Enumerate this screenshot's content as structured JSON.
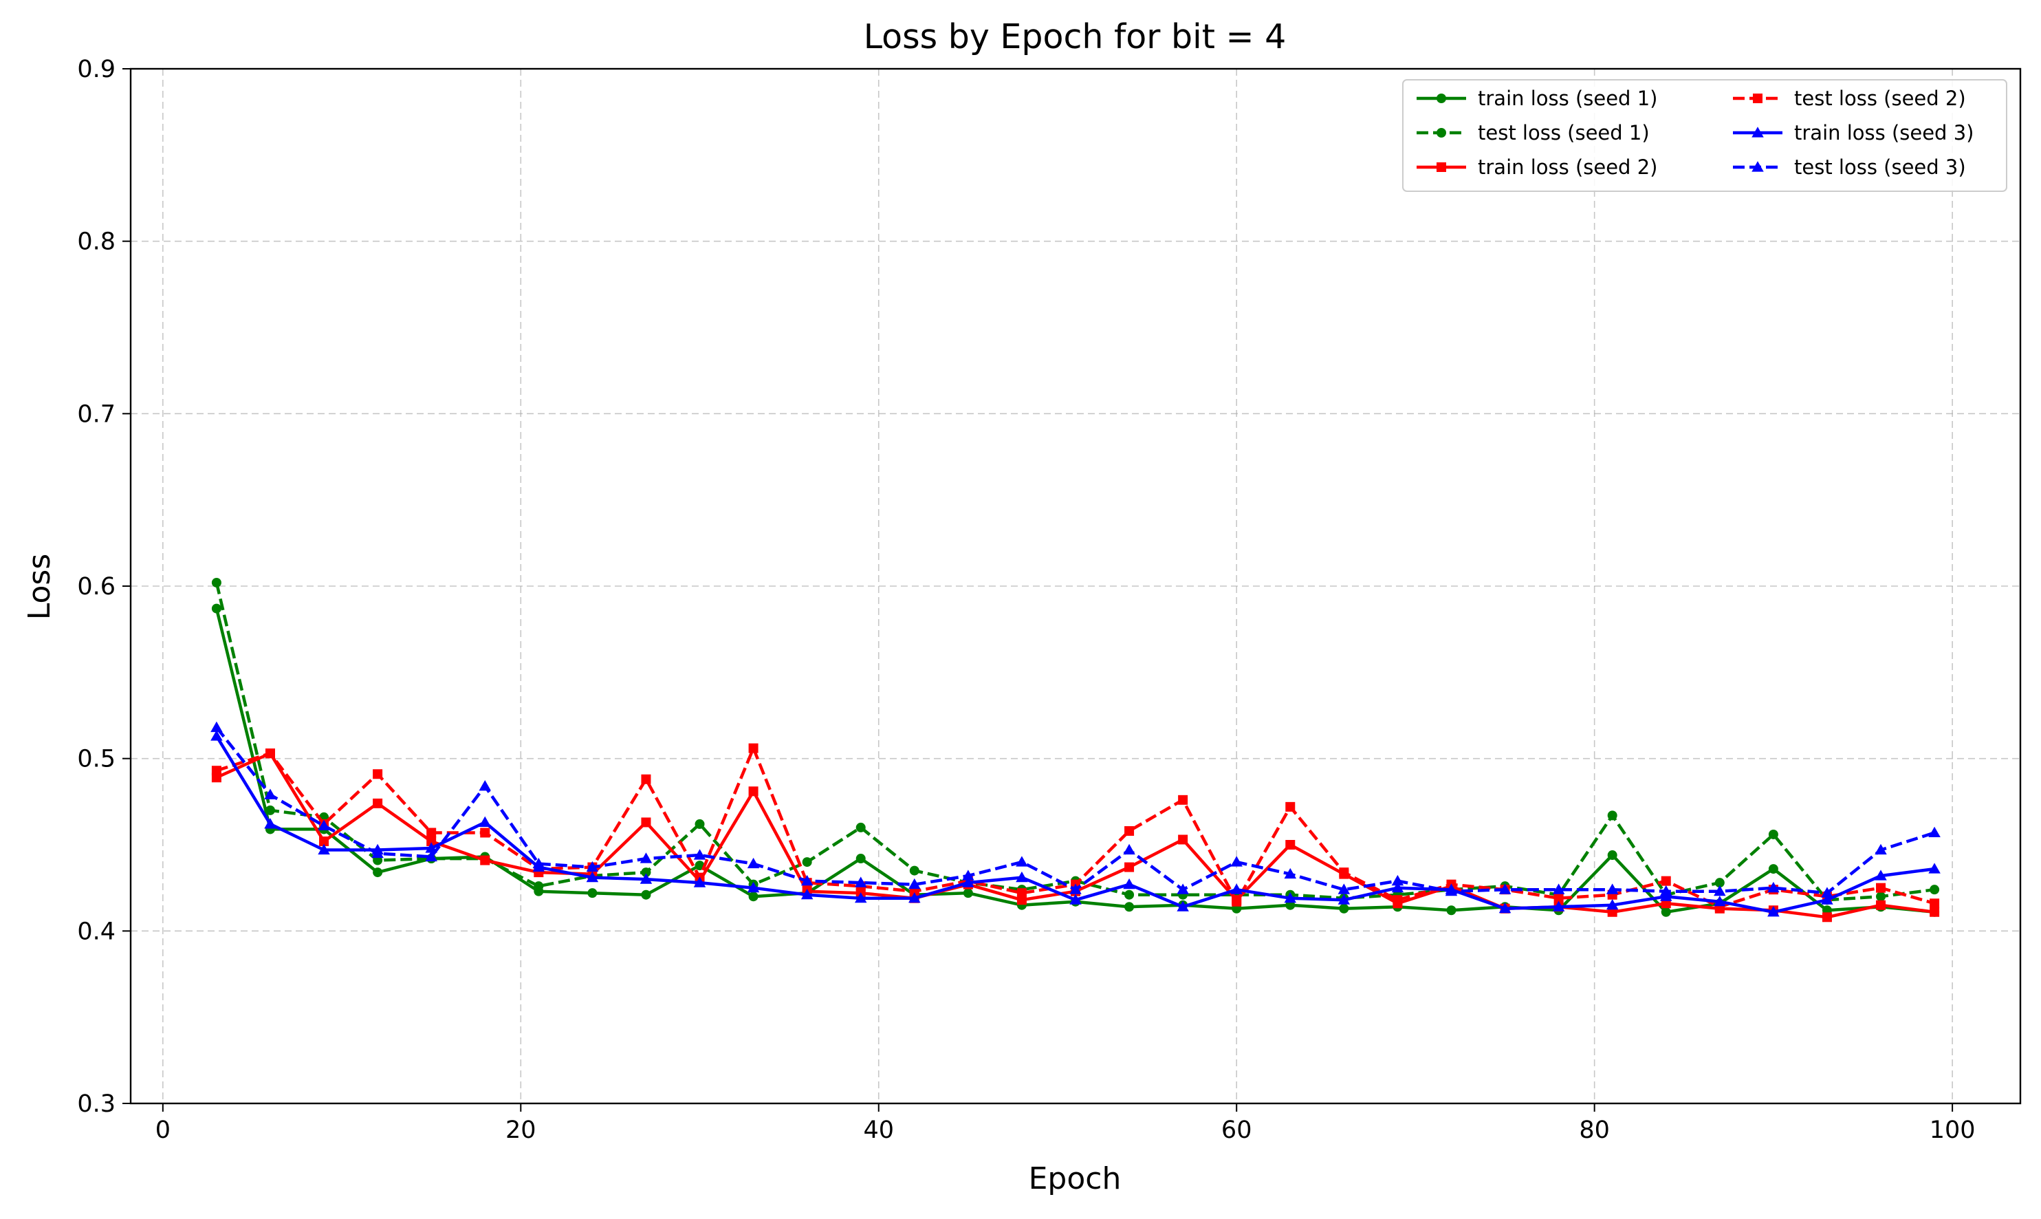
{
  "chart_data": {
    "type": "line",
    "title": "Loss by Epoch for bit = 4",
    "xlabel": "Epoch",
    "ylabel": "Loss",
    "xlim": [
      -1.8,
      103.8
    ],
    "ylim": [
      0.3,
      0.9
    ],
    "xticks": [
      0,
      20,
      40,
      60,
      80,
      100
    ],
    "yticks": [
      0.3,
      0.4,
      0.5,
      0.6,
      0.7,
      0.8,
      0.9
    ],
    "grid": true,
    "legend_position": "top-right",
    "legend_columns": 2,
    "x": [
      3,
      6,
      9,
      12,
      15,
      18,
      21,
      24,
      27,
      30,
      33,
      36,
      39,
      42,
      45,
      48,
      51,
      54,
      57,
      60,
      63,
      66,
      69,
      72,
      75,
      78,
      81,
      84,
      87,
      90,
      93,
      96,
      99
    ],
    "series": [
      {
        "name": "train loss (seed 1)",
        "color": "#008000",
        "dash": "solid",
        "marker": "circle",
        "values": [
          0.587,
          0.459,
          0.459,
          0.434,
          0.442,
          0.443,
          0.423,
          0.422,
          0.421,
          0.438,
          0.42,
          0.422,
          0.442,
          0.421,
          0.422,
          0.415,
          0.417,
          0.414,
          0.415,
          0.413,
          0.415,
          0.413,
          0.414,
          0.412,
          0.414,
          0.412,
          0.444,
          0.411,
          0.416,
          0.436,
          0.412,
          0.414,
          0.411
        ]
      },
      {
        "name": "test loss (seed 1)",
        "color": "#008000",
        "dash": "dashed",
        "marker": "circle",
        "values": [
          0.602,
          0.47,
          0.466,
          0.441,
          0.442,
          0.442,
          0.426,
          0.432,
          0.434,
          0.462,
          0.427,
          0.44,
          0.46,
          0.435,
          0.428,
          0.424,
          0.429,
          0.421,
          0.421,
          0.421,
          0.421,
          0.419,
          0.421,
          0.424,
          0.426,
          0.421,
          0.467,
          0.421,
          0.428,
          0.456,
          0.418,
          0.42,
          0.424
        ]
      },
      {
        "name": "train loss (seed 2)",
        "color": "#ff0000",
        "dash": "solid",
        "marker": "square",
        "values": [
          0.489,
          0.503,
          0.452,
          0.474,
          0.452,
          0.441,
          0.434,
          0.433,
          0.463,
          0.429,
          0.481,
          0.423,
          0.422,
          0.419,
          0.427,
          0.418,
          0.423,
          0.437,
          0.453,
          0.418,
          0.45,
          0.433,
          0.416,
          0.426,
          0.413,
          0.414,
          0.411,
          0.416,
          0.413,
          0.412,
          0.408,
          0.415,
          0.411
        ]
      },
      {
        "name": "test loss (seed 2)",
        "color": "#ff0000",
        "dash": "dashed",
        "marker": "square",
        "values": [
          0.493,
          0.503,
          0.462,
          0.491,
          0.457,
          0.457,
          0.436,
          0.437,
          0.488,
          0.431,
          0.506,
          0.428,
          0.426,
          0.423,
          0.429,
          0.422,
          0.427,
          0.458,
          0.476,
          0.417,
          0.472,
          0.434,
          0.418,
          0.427,
          0.424,
          0.419,
          0.421,
          0.429,
          0.414,
          0.424,
          0.42,
          0.425,
          0.416
        ]
      },
      {
        "name": "train loss (seed 3)",
        "color": "#0000ff",
        "dash": "solid",
        "marker": "triangle",
        "values": [
          0.513,
          0.462,
          0.447,
          0.447,
          0.448,
          0.463,
          0.437,
          0.431,
          0.43,
          0.428,
          0.425,
          0.421,
          0.419,
          0.419,
          0.428,
          0.431,
          0.418,
          0.427,
          0.414,
          0.424,
          0.419,
          0.418,
          0.425,
          0.424,
          0.413,
          0.414,
          0.415,
          0.42,
          0.417,
          0.411,
          0.418,
          0.432,
          0.436
        ]
      },
      {
        "name": "test loss (seed 3)",
        "color": "#0000ff",
        "dash": "dashed",
        "marker": "triangle",
        "values": [
          0.518,
          0.479,
          0.461,
          0.445,
          0.443,
          0.484,
          0.439,
          0.437,
          0.442,
          0.444,
          0.439,
          0.429,
          0.428,
          0.427,
          0.432,
          0.44,
          0.424,
          0.447,
          0.424,
          0.44,
          0.433,
          0.424,
          0.429,
          0.423,
          0.424,
          0.424,
          0.424,
          0.423,
          0.423,
          0.425,
          0.422,
          0.447,
          0.457
        ]
      }
    ]
  }
}
